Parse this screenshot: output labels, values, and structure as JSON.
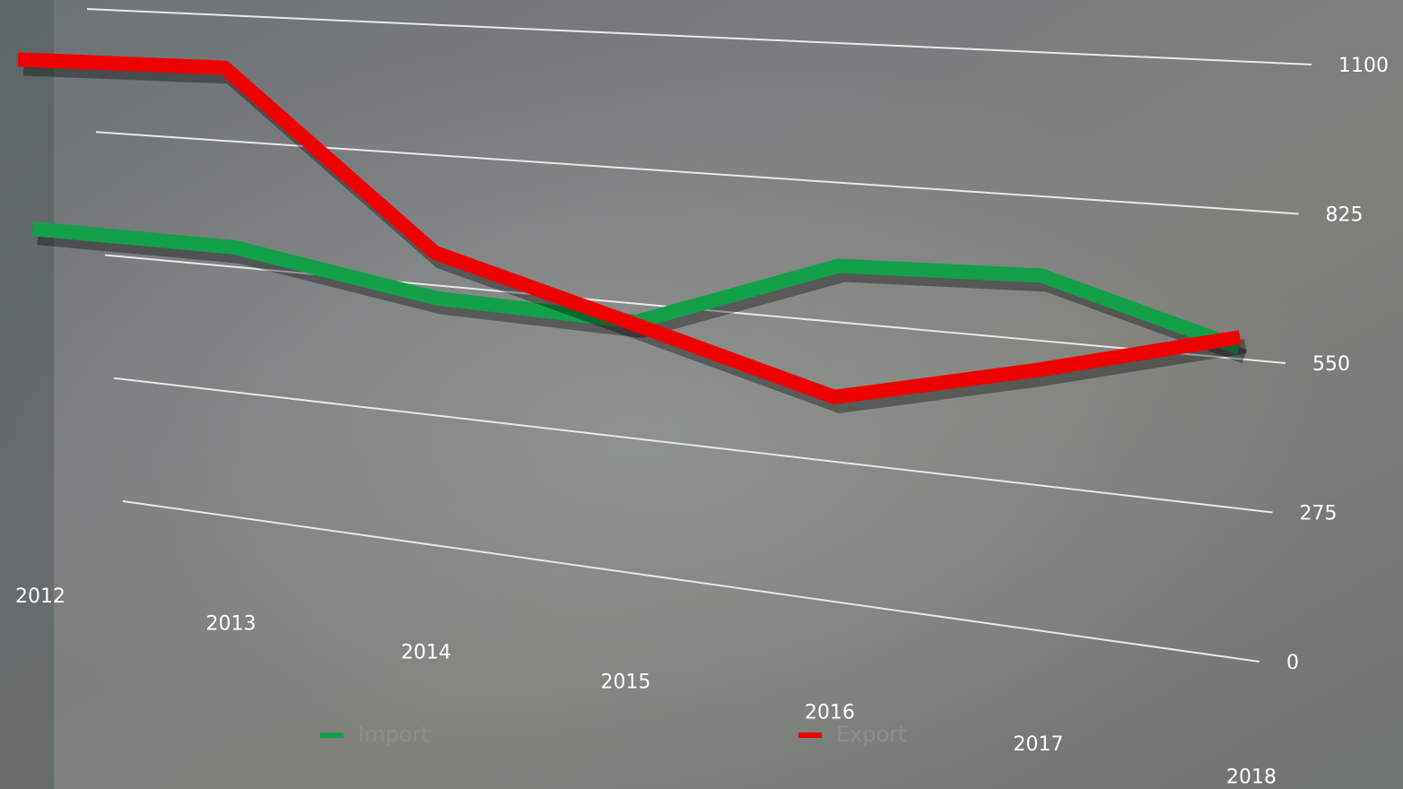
{
  "chart_data": {
    "type": "line",
    "categories": [
      "2012",
      "2013",
      "2014",
      "2015",
      "2016",
      "2017",
      "2018"
    ],
    "series": [
      {
        "name": "Import",
        "color": "#12a04a",
        "values": [
          595,
          593,
          523,
          513,
          661,
          674,
          571
        ]
      },
      {
        "name": "Export",
        "color": "#f00000",
        "values": [
          978,
          985,
          619,
          507,
          402,
          493,
          590
        ]
      }
    ],
    "ylim": [
      0,
      1100
    ],
    "yticks": [
      0,
      275,
      550,
      825,
      1100
    ],
    "grid": true,
    "legend": "bottom"
  }
}
